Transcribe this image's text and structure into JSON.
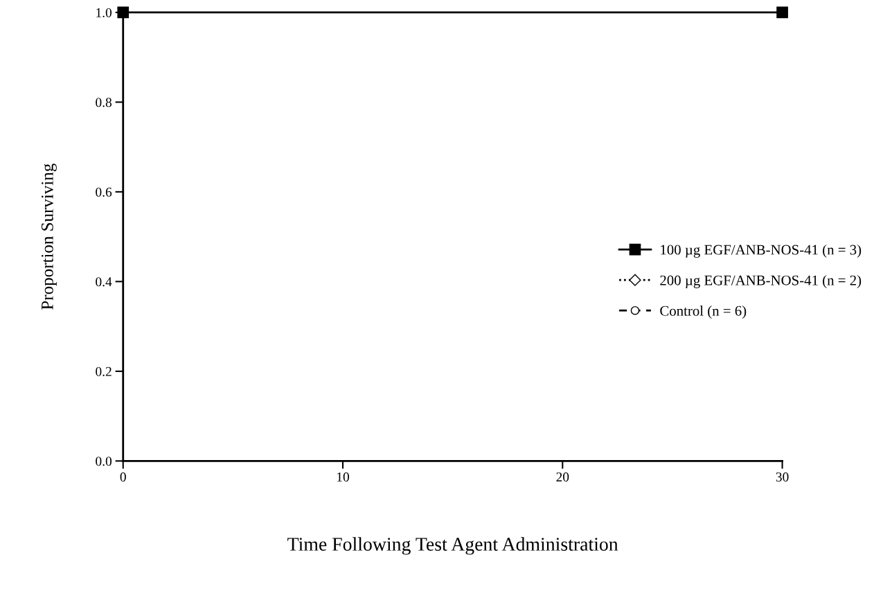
{
  "chart_data": {
    "type": "line",
    "xlabel": "Time Following Test Agent Administration",
    "ylabel": "Proportion Surviving",
    "x": [
      0,
      30
    ],
    "series": [
      {
        "name": "100 µg EGF/ANB-NOS-41 (n = 3)",
        "color": "#000000",
        "values": [
          1.0,
          1.0
        ],
        "marker": "square",
        "line_style": "solid"
      },
      {
        "name": "200 µg EGF/ANB-NOS-41 (n = 2)",
        "color": "#000000",
        "values": [
          null,
          null
        ],
        "marker": "diamond",
        "line_style": "dotted"
      },
      {
        "name": "Control (n = 6)",
        "color": "#000000",
        "values": [
          null,
          null
        ],
        "marker": "circle",
        "line_style": "dashed"
      }
    ],
    "xlim": [
      0,
      30
    ],
    "xticks": [
      0,
      10,
      20,
      30
    ],
    "ylim": [
      0,
      1.0
    ],
    "yticks": [
      {
        "value": 0,
        "label": "0.0"
      },
      {
        "value": 0.2,
        "label": "0.2"
      },
      {
        "value": 0.4,
        "label": "0.4"
      },
      {
        "value": 0.6,
        "label": "0.6"
      },
      {
        "value": 0.8,
        "label": "0.8"
      },
      {
        "value": 1.0,
        "label": "1.0"
      }
    ],
    "grid": false,
    "legend": "right"
  }
}
